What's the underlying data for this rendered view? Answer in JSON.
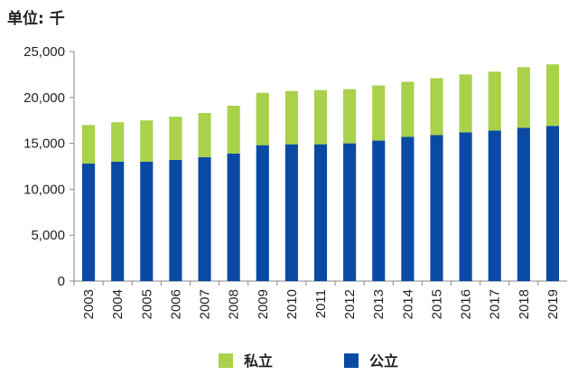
{
  "chart_data": {
    "type": "bar",
    "stacked": true,
    "unit_label": "单位: 千",
    "categories": [
      "2003",
      "2004",
      "2005",
      "2006",
      "2007",
      "2008",
      "2009",
      "2010",
      "2011",
      "2012",
      "2013",
      "2014",
      "2015",
      "2016",
      "2017",
      "2018",
      "2019"
    ],
    "series": [
      {
        "name": "公立",
        "color": "#0a4aa5",
        "values": [
          12800,
          13000,
          13000,
          13200,
          13500,
          13900,
          14800,
          14900,
          14900,
          15000,
          15300,
          15700,
          15900,
          16200,
          16400,
          16700,
          16900
        ]
      },
      {
        "name": "私立",
        "color": "#a9d14a",
        "values": [
          4200,
          4300,
          4500,
          4700,
          4800,
          5200,
          5700,
          5800,
          5900,
          5900,
          6000,
          6000,
          6200,
          6300,
          6400,
          6600,
          6700
        ]
      }
    ],
    "legend_order": [
      "私立",
      "公立"
    ],
    "y_ticks": [
      "0",
      "5,000",
      "10,000",
      "15,000",
      "20,000",
      "25,000"
    ],
    "ylim": [
      0,
      25000
    ],
    "legend_position": "bottom",
    "grid": false
  }
}
